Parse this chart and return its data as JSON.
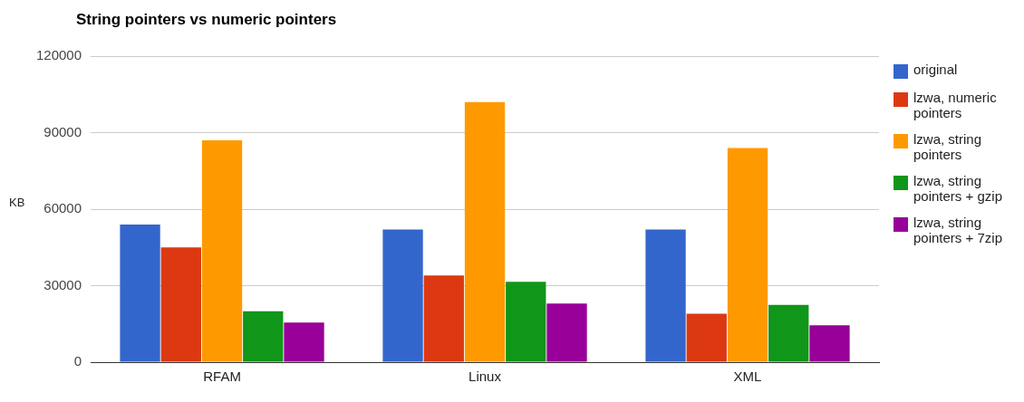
{
  "chart_data": {
    "type": "bar",
    "title": "String pointers vs numeric pointers",
    "ylabel": "KB",
    "categories": [
      "RFAM",
      "Linux",
      "XML"
    ],
    "series": [
      {
        "name": "original",
        "color": "#3366cc",
        "values": [
          54000,
          52000,
          52000
        ]
      },
      {
        "name": "lzwa, numeric pointers",
        "color": "#dc3912",
        "values": [
          45000,
          34000,
          19000
        ]
      },
      {
        "name": "lzwa, string pointers",
        "color": "#ff9900",
        "values": [
          87000,
          102000,
          84000
        ]
      },
      {
        "name": "lzwa, string pointers + gzip",
        "color": "#109618",
        "values": [
          20000,
          31500,
          22500
        ]
      },
      {
        "name": "lzwa, string pointers + 7zip",
        "color": "#990099",
        "values": [
          15500,
          23000,
          14500
        ]
      }
    ],
    "ylim": [
      0,
      120000
    ],
    "yticks": [
      0,
      30000,
      60000,
      90000,
      120000
    ],
    "grid": "y",
    "legend": "right"
  }
}
